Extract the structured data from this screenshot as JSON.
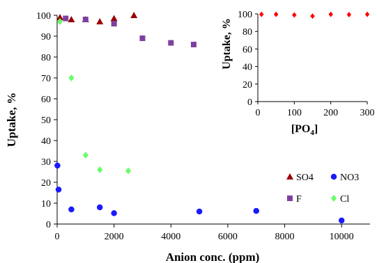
{
  "chart_data": [
    {
      "type": "scatter",
      "title": "",
      "xlabel": "Anion conc. (ppm)",
      "ylabel": "Uptake, %",
      "xlim": [
        0,
        11000
      ],
      "ylim": [
        0,
        100
      ],
      "x_ticks": [
        "0",
        "2000",
        "4000",
        "6000",
        "8000",
        "10000"
      ],
      "y_ticks": [
        "0",
        "10",
        "20",
        "30",
        "40",
        "50",
        "60",
        "70",
        "80",
        "90",
        "100"
      ],
      "grid": false,
      "legend_position": "bottom-right",
      "series": [
        {
          "name": "SO4",
          "marker": "triangle",
          "color": "#990000",
          "points": [
            [
              100,
              99
            ],
            [
              500,
              98
            ],
            [
              1000,
              98
            ],
            [
              1500,
              97
            ],
            [
              2000,
              98.5
            ],
            [
              2700,
              100
            ]
          ]
        },
        {
          "name": "NO3",
          "marker": "circle",
          "color": "#1a1aff",
          "points": [
            [
              10,
              28
            ],
            [
              50,
              16.5
            ],
            [
              500,
              7
            ],
            [
              1500,
              8
            ],
            [
              2000,
              5.2
            ],
            [
              5000,
              6
            ],
            [
              7000,
              6.3
            ],
            [
              10000,
              1.7
            ]
          ]
        },
        {
          "name": "F",
          "marker": "square",
          "color": "#7f3fa0",
          "points": [
            [
              300,
              98.5
            ],
            [
              1000,
              98
            ],
            [
              2000,
              96
            ],
            [
              3000,
              89
            ],
            [
              4000,
              86.8
            ],
            [
              4800,
              86
            ]
          ]
        },
        {
          "name": "Cl",
          "marker": "diamond",
          "color": "#66ff66",
          "points": [
            [
              100,
              97
            ],
            [
              500,
              70
            ],
            [
              1000,
              33
            ],
            [
              1500,
              26
            ],
            [
              2500,
              25.5
            ]
          ]
        }
      ]
    },
    {
      "type": "scatter",
      "title": "",
      "xlabel": "[PO4]",
      "ylabel": "Uptake, %",
      "xlim": [
        0,
        300
      ],
      "ylim": [
        0,
        100
      ],
      "x_ticks": [
        "0",
        "100",
        "200",
        "300"
      ],
      "y_ticks": [
        "0",
        "20",
        "40",
        "60",
        "80",
        "100"
      ],
      "grid": false,
      "series": [
        {
          "marker": "diamond",
          "color": "#ff0000",
          "points": [
            [
              10,
              99.5
            ],
            [
              50,
              99.5
            ],
            [
              100,
              98.8
            ],
            [
              150,
              97.5
            ],
            [
              200,
              99.5
            ],
            [
              250,
              99.2
            ],
            [
              300,
              99.5
            ]
          ]
        }
      ]
    }
  ]
}
